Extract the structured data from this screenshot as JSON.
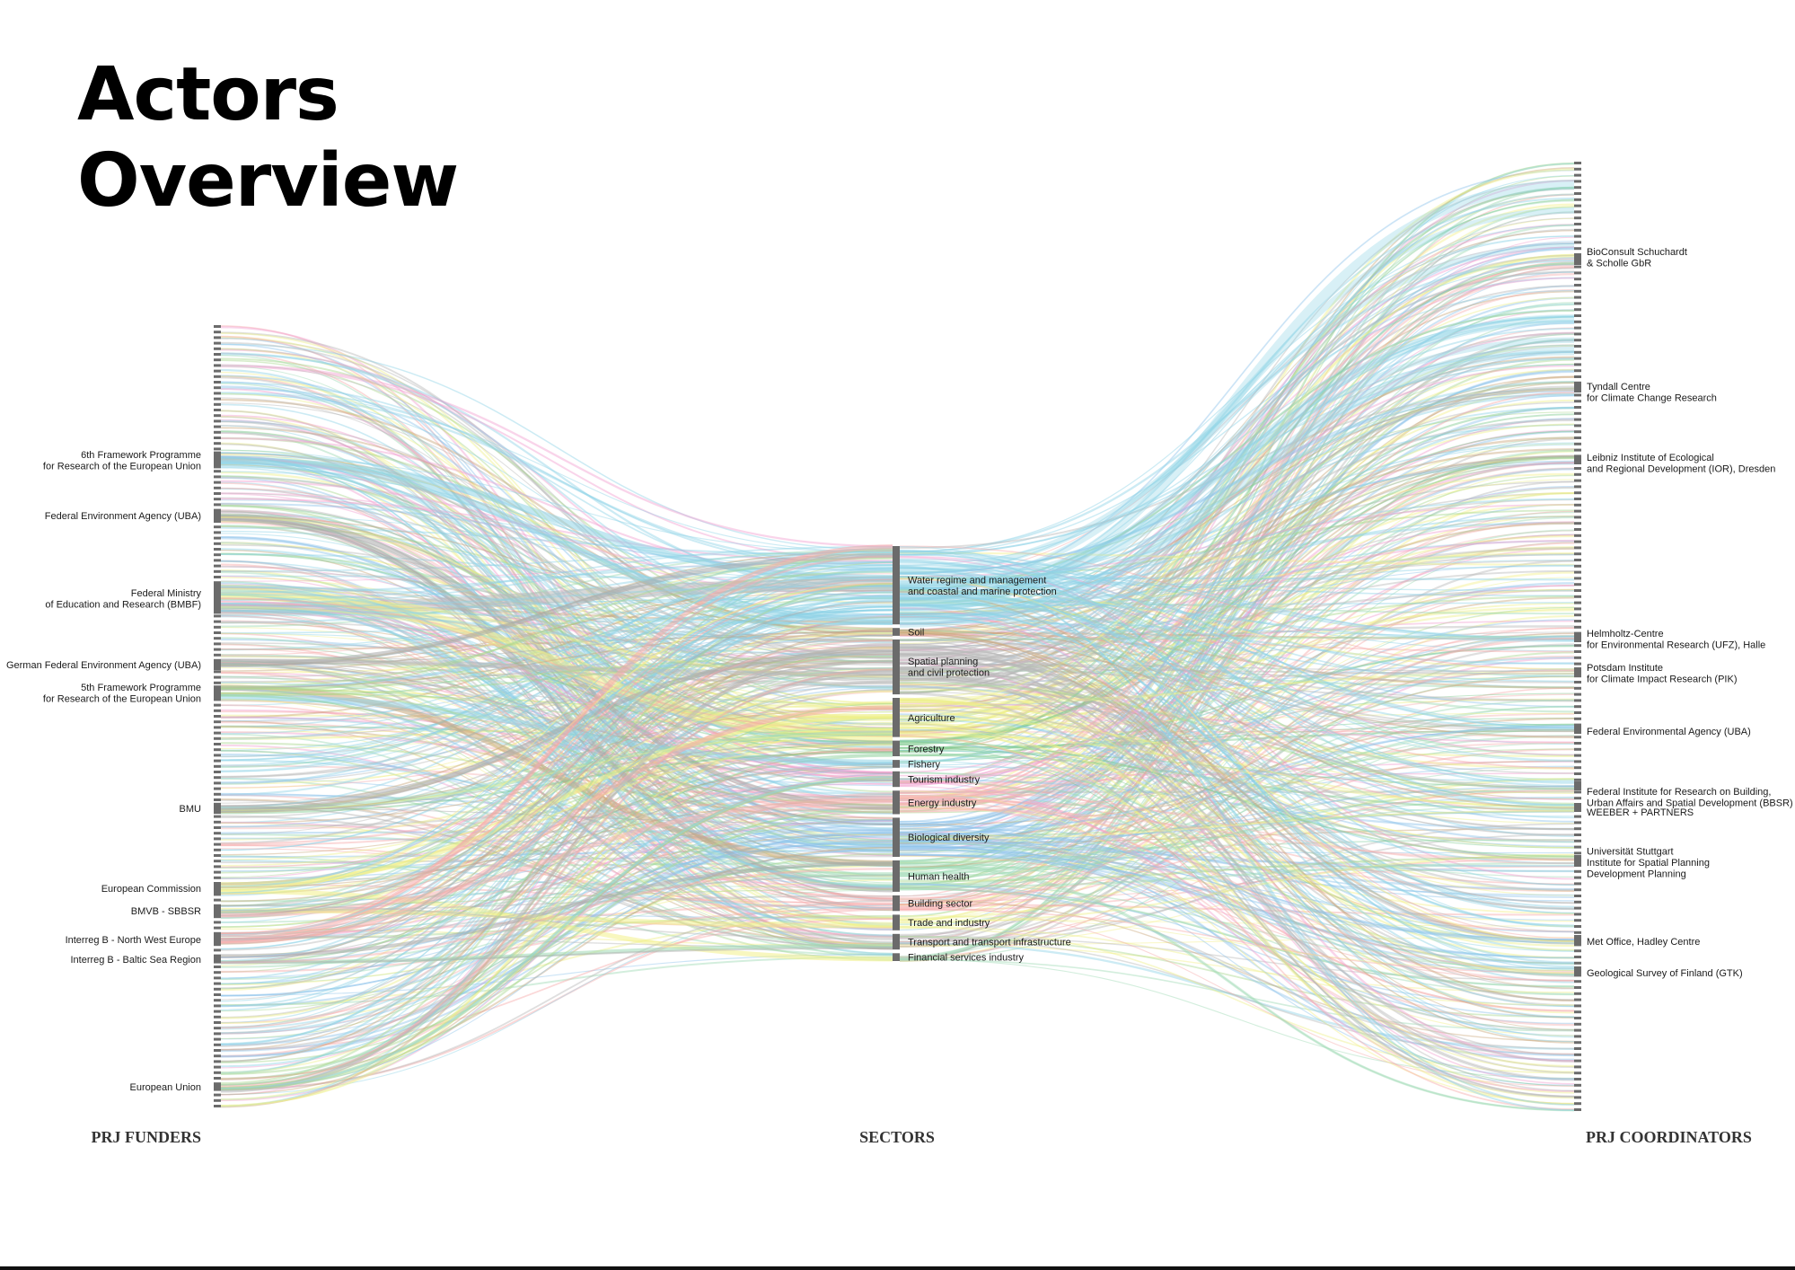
{
  "title": {
    "line1": "Actors",
    "line2": "Overview"
  },
  "columns": {
    "funders": "PRJ FUNDERS",
    "sectors": "SECTORS",
    "coordinators": "PRJ COORDINATORS"
  },
  "chart_data": {
    "type": "alluvial",
    "funders": [
      {
        "label": [
          "6th Framework Programme",
          "for Research of the European Union"
        ],
        "weight": 4,
        "color": "#8fd3e6"
      },
      {
        "label": [
          "Federal Environment Agency (UBA)"
        ],
        "weight": 2,
        "color": "#aaaaaa"
      },
      {
        "label": [
          "Federal Ministry",
          "of Education and Research (BMBF)"
        ],
        "weight": 9,
        "color": "#8fd3e6"
      },
      {
        "label": [
          "German Federal Environment Agency (UBA)"
        ],
        "weight": 2,
        "color": "#aaaaaa"
      },
      {
        "label": [
          "5th Framework Programme",
          "for Research of the European Union"
        ],
        "weight": 3,
        "color": "#a9d88f"
      },
      {
        "label": [
          "BMU"
        ],
        "weight": 2,
        "color": "#aaaaaa"
      },
      {
        "label": [
          "European Commission"
        ],
        "weight": 2,
        "color": "#f3f08a"
      },
      {
        "label": [
          "BMVB - SBBSR"
        ],
        "weight": 2,
        "color": "#aaaaaa"
      },
      {
        "label": [
          "Interreg B - North West Europe"
        ],
        "weight": 2,
        "color": "#f6a9a9"
      },
      {
        "label": [
          "Interreg B - Baltic Sea Region"
        ],
        "weight": 1,
        "color": "#aaaaaa"
      },
      {
        "label": [
          "European Union"
        ],
        "weight": 1,
        "color": "#a9d88f"
      }
    ],
    "sectors": [
      {
        "label": [
          "Water regime and management",
          "and coastal and marine protection"
        ],
        "weight": 10,
        "color": "#8fd3e6"
      },
      {
        "label": [
          "Soil"
        ],
        "weight": 1,
        "color": "#c9a77a"
      },
      {
        "label": [
          "Spatial planning",
          "and civil protection"
        ],
        "weight": 7,
        "color": "#b8b8b8"
      },
      {
        "label": [
          "Agriculture"
        ],
        "weight": 5,
        "color": "#eef08a"
      },
      {
        "label": [
          "Forestry"
        ],
        "weight": 2,
        "color": "#7fc98f"
      },
      {
        "label": [
          "Fishery"
        ],
        "weight": 1,
        "color": "#8fd3e6"
      },
      {
        "label": [
          "Tourism industry"
        ],
        "weight": 2,
        "color": "#f29fd0"
      },
      {
        "label": [
          "Energy industry"
        ],
        "weight": 3,
        "color": "#f6b3b3"
      },
      {
        "label": [
          "Biological diversity"
        ],
        "weight": 5,
        "color": "#8fc3ea"
      },
      {
        "label": [
          "Human health"
        ],
        "weight": 4,
        "color": "#9ed9b4"
      },
      {
        "label": [
          "Building sector"
        ],
        "weight": 2,
        "color": "#f6a9a9"
      },
      {
        "label": [
          "Trade and industry"
        ],
        "weight": 2,
        "color": "#eef08a"
      },
      {
        "label": [
          "Transport and transport infrastructure"
        ],
        "weight": 2,
        "color": "#b8b8b8"
      },
      {
        "label": [
          "Financial services industry"
        ],
        "weight": 1,
        "color": "#9ed9b4"
      }
    ],
    "coordinators": [
      {
        "label": [
          "BioConsult Schuchardt",
          "& Scholle GbR"
        ]
      },
      {
        "label": [
          "Tyndall Centre",
          "for Climate Change Research"
        ]
      },
      {
        "label": [
          "Leibniz Institute of Ecological",
          "and Regional Development (IOR), Dresden"
        ]
      },
      {
        "label": [
          "Helmholtz-Centre",
          "for Environmental Research (UFZ), Halle"
        ]
      },
      {
        "label": [
          "Potsdam Institute",
          "for Climate Impact Research (PIK)"
        ]
      },
      {
        "label": [
          "Federal Environmental Agency (UBA)"
        ]
      },
      {
        "label": [
          "Federal Institute for Research on Building,",
          "Urban Affairs and Spatial Development (BBSR)"
        ]
      },
      {
        "label": [
          "WEEBER + PARTNERS"
        ]
      },
      {
        "label": [
          "Universität Stuttgart",
          "Institute for Spatial Planning",
          "Development Planning"
        ]
      },
      {
        "label": [
          "Met Office, Hadley Centre"
        ]
      },
      {
        "label": [
          "Geological Survey of Finland (GTK)"
        ]
      }
    ],
    "palette": [
      "#8fd3e6",
      "#b8b8b8",
      "#a9d88f",
      "#f3f08a",
      "#f6a9a9",
      "#f29fd0",
      "#9ed9b4",
      "#c9a77a",
      "#8fc3ea"
    ]
  }
}
